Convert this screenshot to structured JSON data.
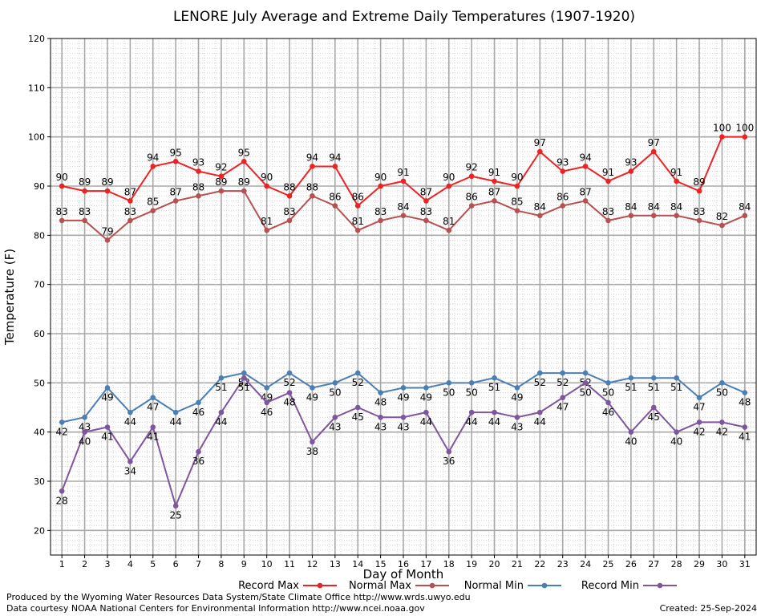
{
  "chart_data": {
    "type": "line",
    "title": "LENORE July Average and Extreme Daily Temperatures (1907-1920)",
    "xlabel": "Day of Month",
    "ylabel": "Temperature (F)",
    "ylim": [
      15,
      120
    ],
    "yticks": [
      20,
      30,
      40,
      50,
      60,
      70,
      80,
      90,
      100,
      110,
      120
    ],
    "grid": true,
    "legend_position": "bottom",
    "x": [
      1,
      2,
      3,
      4,
      5,
      6,
      7,
      8,
      9,
      10,
      11,
      12,
      13,
      14,
      15,
      16,
      17,
      18,
      19,
      20,
      21,
      22,
      23,
      24,
      25,
      26,
      27,
      28,
      29,
      30,
      31
    ],
    "series": [
      {
        "name": "Record Max",
        "color": "#ee2222",
        "label_position": "above",
        "values": [
          90,
          89,
          89,
          87,
          94,
          95,
          93,
          92,
          95,
          90,
          88,
          94,
          94,
          86,
          90,
          91,
          87,
          90,
          92,
          91,
          90,
          97,
          93,
          94,
          91,
          93,
          97,
          91,
          89,
          100,
          100
        ]
      },
      {
        "name": "Normal Max",
        "color": "#b85050",
        "label_position": "above",
        "values": [
          83,
          83,
          79,
          83,
          85,
          87,
          88,
          89,
          89,
          81,
          83,
          88,
          86,
          81,
          83,
          84,
          83,
          81,
          86,
          87,
          85,
          84,
          86,
          87,
          83,
          84,
          84,
          84,
          83,
          82,
          84
        ]
      },
      {
        "name": "Normal Min",
        "color": "#4a7fb5",
        "label_position": "below",
        "values": [
          42,
          43,
          49,
          44,
          47,
          44,
          46,
          51,
          52,
          49,
          52,
          49,
          50,
          52,
          48,
          49,
          49,
          50,
          50,
          51,
          49,
          52,
          52,
          52,
          50,
          51,
          51,
          51,
          47,
          50,
          48
        ]
      },
      {
        "name": "Record Min",
        "color": "#8055a0",
        "label_position": "below",
        "values": [
          28,
          40,
          41,
          34,
          41,
          25,
          36,
          44,
          51,
          46,
          48,
          38,
          43,
          45,
          43,
          43,
          44,
          36,
          44,
          44,
          43,
          44,
          47,
          50,
          46,
          40,
          45,
          40,
          42,
          42,
          41
        ]
      }
    ]
  },
  "footer": {
    "produced_by": "Produced by the Wyoming Water Resources Data System/State Climate Office http://www.wrds.uwyo.edu",
    "data_courtesy": "Data courtesy NOAA National Centers for Environmental Information http://www.ncei.noaa.gov",
    "created": "Created:  25-Sep-2024"
  }
}
